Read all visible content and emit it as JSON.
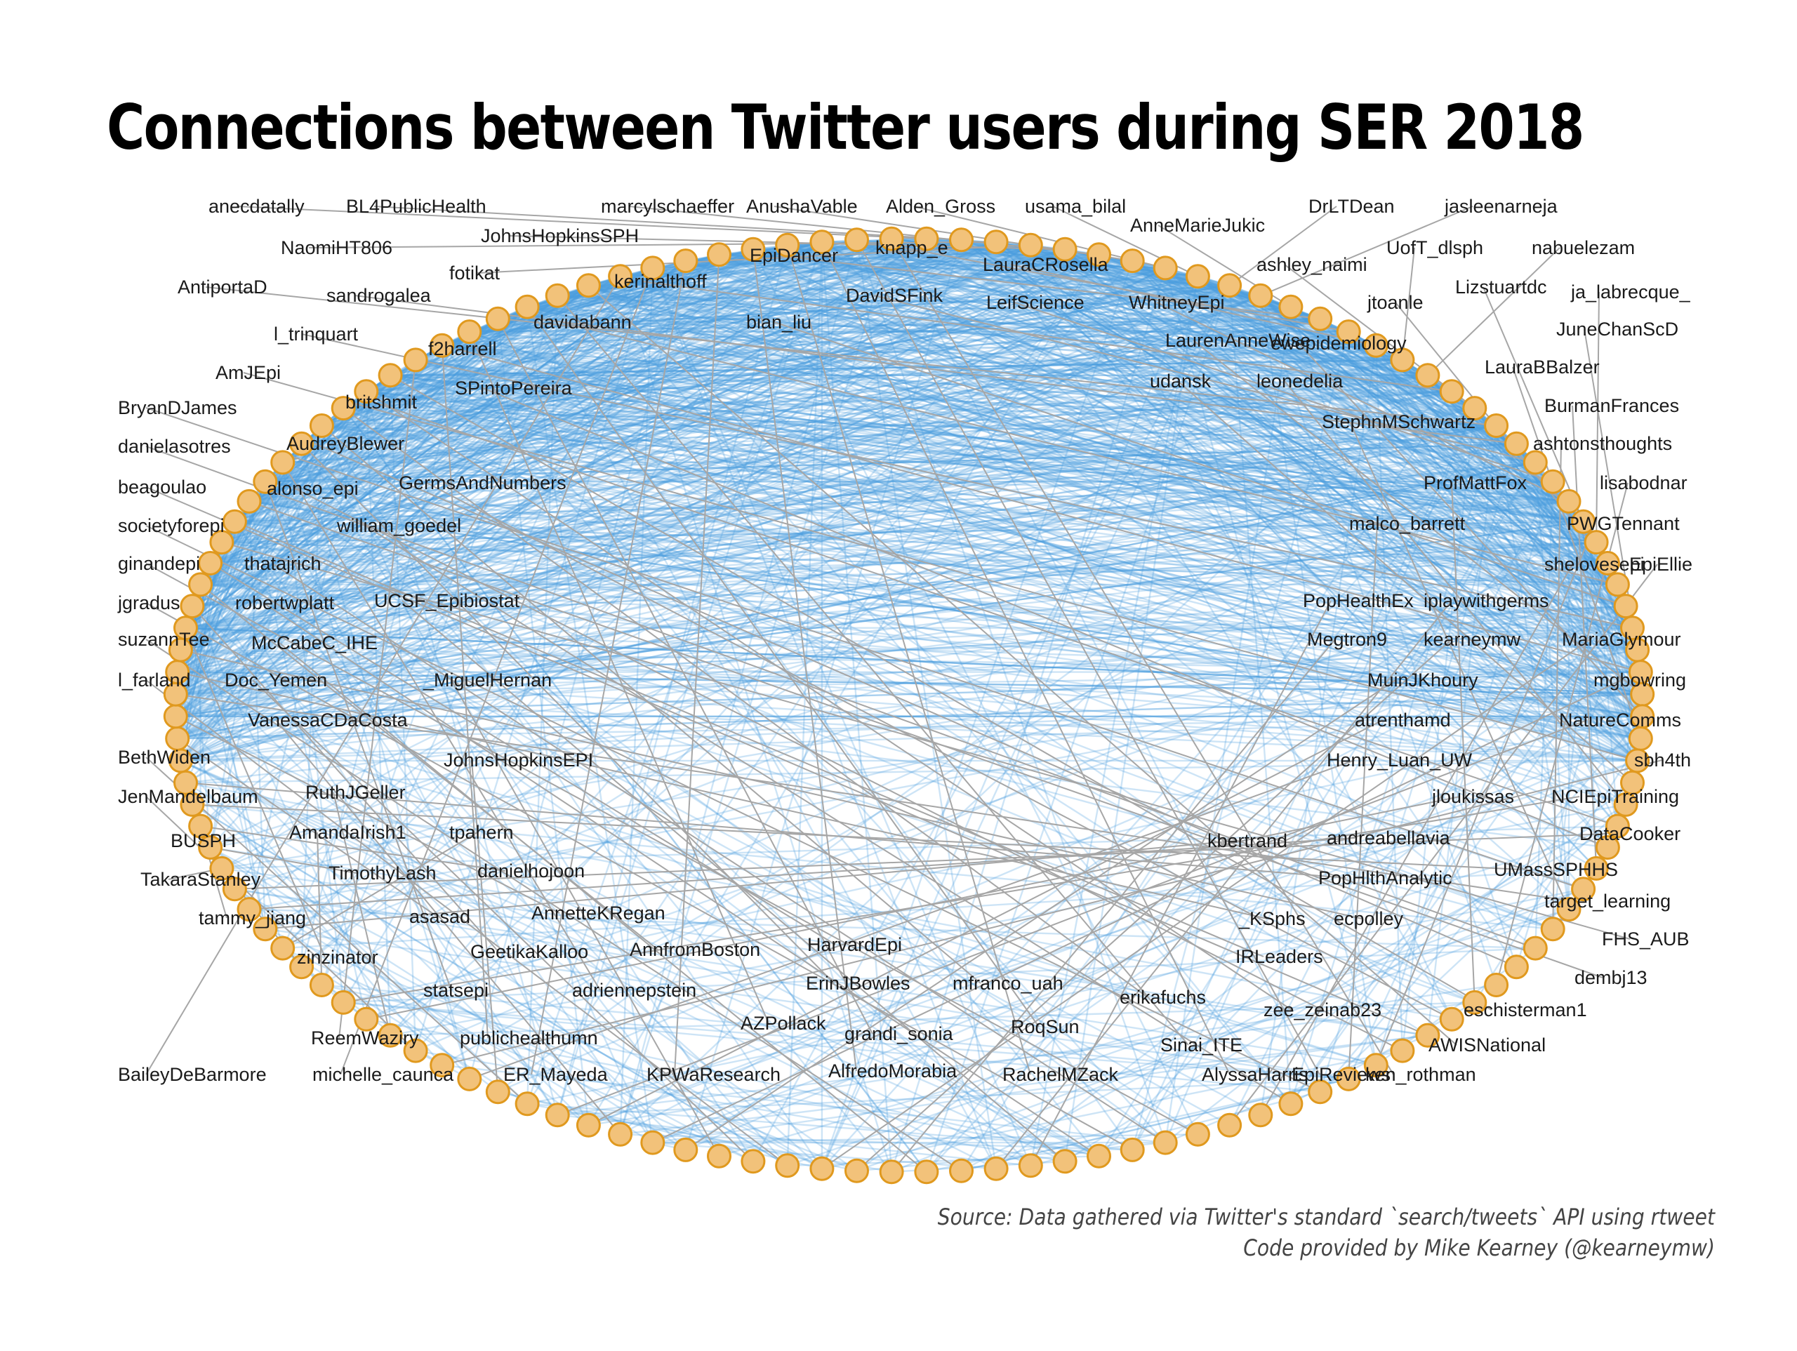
{
  "title": "Connections between Twitter users during SER 2018",
  "caption": {
    "line1": "Source: Data gathered via Twitter's standard `search/tweets` API using rtweet",
    "line2": "Code provided by Mike Kearney (@kearneymw)"
  },
  "colors": {
    "edge": "#4a9ee0",
    "node_fill": "#f2c27a",
    "node_stroke": "#e0991e",
    "leader": "#a6a6a6"
  },
  "nodes": [
    "anecdatally",
    "BL4PublicHealth",
    "NaomiHT806",
    "fotikat",
    "JohnsHopkinsSPH",
    "marcylschaeffer",
    "AnushaVable",
    "Alden_Gross",
    "usama_bilal",
    "DrLTDean",
    "jasleenarneja",
    "AnneMarieJukic",
    "EpiDancer",
    "knapp_e",
    "LauraCRosella",
    "UofT_dlsph",
    "nabuelezam",
    "kerinalthoff",
    "ashley_naimi",
    "AntiportaD",
    "sandrogalea",
    "DavidSFink",
    "LeifScience",
    "WhitneyEpi",
    "Lizstuartdc",
    "ja_labrecque_",
    "jtoanle",
    "davidabann",
    "bian_liu",
    "l_trinquart",
    "JuneChanScD",
    "f2harrell",
    "LaurenAnneWise",
    "ewepidemiology",
    "LauraBBalzer",
    "AmJEpi",
    "udansk",
    "leonedelia",
    "britshmit",
    "SPintoPereira",
    "BurmanFrances",
    "BryanDJames",
    "StephnMSchwartz",
    "ashtonsthoughts",
    "danielasotres",
    "AudreyBlewer",
    "lisabodnar",
    "ProfMattFox",
    "GermsAndNumbers",
    "beagoulao",
    "alonso_epi",
    "PWGTennant",
    "malco_barrett",
    "societyforepi",
    "william_goedel",
    "shelovesepi",
    "EpiEllie",
    "ginandepi",
    "thatajrich",
    "jgradus",
    "robertwplatt",
    "UCSF_Epibiostat",
    "PopHealthEx",
    "iplaywithgerms",
    "suzannTee",
    "McCabeC_IHE",
    "Megtron9",
    "kearneymw",
    "MariaGlymour",
    "l_farland",
    "Doc_Yemen",
    "_MiguelHernan",
    "MuinJKhoury",
    "mgbowring",
    "VanessaCDaCosta",
    "atrenthamd",
    "NatureComms",
    "BethWiden",
    "JohnsHopkinsEPI",
    "Henry_Luan_UW",
    "sbh4th",
    "JenMandelbaum",
    "RuthJGeller",
    "jloukissas",
    "NCIEpiTraining",
    "AmandaIrish1",
    "BUSPH",
    "tpahern",
    "kbertrand",
    "andreabellavia",
    "DataCooker",
    "TakaraStanley",
    "TimothyLash",
    "danielhojoon",
    "UMassSPHHS",
    "PopHlthAnalytic",
    "tammy_jiang",
    "asasad",
    "AnnetteKRegan",
    "target_learning",
    "_KSphs",
    "ecpolley",
    "zinzinator",
    "GeetikaKalloo",
    "AnnfromBoston",
    "HarvardEpi",
    "FHS_AUB",
    "IRLeaders",
    "dembj13",
    "statsepi",
    "adriennepstein",
    "ErinJBowles",
    "mfranco_uah",
    "erikafuchs",
    "zee_zeinab23",
    "eschisterman1",
    "ReemWaziry",
    "publichealthumn",
    "AZPollack",
    "grandi_sonia",
    "RoqSun",
    "Sinai_ITE",
    "AWISNational",
    "BaileyDeBarmore",
    "michelle_caunca",
    "ER_Mayeda",
    "KPWaResearch",
    "AlfredoMorabia",
    "RachelMZack",
    "AlyssaHarris",
    "EpiReviews",
    "ken_rothman"
  ]
}
